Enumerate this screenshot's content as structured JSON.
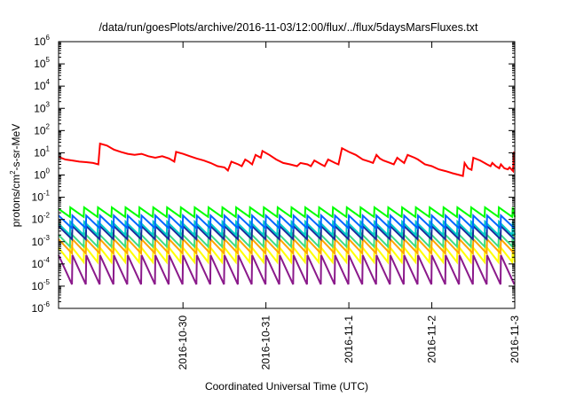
{
  "chart_data": {
    "type": "line",
    "title": "/data/run/goesPlots/archive/2016-11-03/12:00/flux/../flux/5daysMarsFluxes.txt",
    "xlabel": "Coordinated Universal Time (UTC)",
    "ylabel": {
      "prefix": "protons/cm",
      "exponent": "2",
      "suffix": "-s-sr-MeV"
    },
    "yscale": "log",
    "ylim": [
      1e-06,
      1000000.0
    ],
    "xlim": [
      "2016-10-29T00:00",
      "2016-11-03T12:00"
    ],
    "grid": false,
    "legend": "none",
    "y_ticks": [
      {
        "base": "10",
        "exp": "-6",
        "value": 1e-06
      },
      {
        "base": "10",
        "exp": "-5",
        "value": 1e-05
      },
      {
        "base": "10",
        "exp": "-4",
        "value": 0.0001
      },
      {
        "base": "10",
        "exp": "-3",
        "value": 0.001
      },
      {
        "base": "10",
        "exp": "-2",
        "value": 0.01
      },
      {
        "base": "10",
        "exp": "-1",
        "value": 0.1
      },
      {
        "base": "10",
        "exp": "0",
        "value": 1
      },
      {
        "base": "10",
        "exp": "1",
        "value": 10
      },
      {
        "base": "10",
        "exp": "2",
        "value": 100
      },
      {
        "base": "10",
        "exp": "3",
        "value": 1000
      },
      {
        "base": "10",
        "exp": "4",
        "value": 10000
      },
      {
        "base": "10",
        "exp": "5",
        "value": 100000
      },
      {
        "base": "10",
        "exp": "6",
        "value": 1000000
      }
    ],
    "x_ticks": [
      {
        "label": "2016-10-30",
        "value": "2016-10-30T12:00"
      },
      {
        "label": "2016-10-31",
        "value": "2016-10-31T12:00"
      },
      {
        "label": "2016-11-1",
        "value": "2016-11-01T12:00"
      },
      {
        "label": "2016-11-2",
        "value": "2016-11-02T12:00"
      },
      {
        "label": "2016-11-3",
        "value": "2016-11-03T12:00"
      }
    ],
    "series": [
      {
        "color": "#ff0000",
        "points": [
          [
            "2016-10-29T00:00",
            6.5
          ],
          [
            "2016-10-29T02:00",
            5.0
          ],
          [
            "2016-10-29T04:00",
            4.5
          ],
          [
            "2016-10-29T06:00",
            4.0
          ],
          [
            "2016-10-29T08:00",
            3.8
          ],
          [
            "2016-10-29T10:00",
            3.5
          ],
          [
            "2016-10-29T11:30",
            3.0
          ],
          [
            "2016-10-29T12:00",
            26
          ],
          [
            "2016-10-29T14:00",
            21
          ],
          [
            "2016-10-29T16:00",
            14
          ],
          [
            "2016-10-29T18:00",
            11
          ],
          [
            "2016-10-29T20:00",
            9
          ],
          [
            "2016-10-29T22:00",
            8
          ],
          [
            "2016-10-30T00:00",
            9
          ],
          [
            "2016-10-30T02:00",
            7
          ],
          [
            "2016-10-30T04:00",
            6
          ],
          [
            "2016-10-30T06:00",
            7
          ],
          [
            "2016-10-30T08:00",
            5.5
          ],
          [
            "2016-10-30T09:30",
            4.0
          ],
          [
            "2016-10-30T10:00",
            11
          ],
          [
            "2016-10-30T12:00",
            9
          ],
          [
            "2016-10-30T14:00",
            7
          ],
          [
            "2016-10-30T16:00",
            5.5
          ],
          [
            "2016-10-30T18:00",
            4.5
          ],
          [
            "2016-10-30T20:00",
            3.5
          ],
          [
            "2016-10-30T22:00",
            2.5
          ],
          [
            "2016-10-31T00:00",
            2.2
          ],
          [
            "2016-10-31T01:00",
            1.6
          ],
          [
            "2016-10-31T02:00",
            4.0
          ],
          [
            "2016-10-31T04:00",
            3.0
          ],
          [
            "2016-10-31T05:00",
            2.5
          ],
          [
            "2016-10-31T06:00",
            5.0
          ],
          [
            "2016-10-31T07:00",
            4.0
          ],
          [
            "2016-10-31T08:00",
            3.0
          ],
          [
            "2016-10-31T09:00",
            8.0
          ],
          [
            "2016-10-31T10:30",
            6.0
          ],
          [
            "2016-10-31T11:00",
            12
          ],
          [
            "2016-10-31T13:00",
            8.0
          ],
          [
            "2016-10-31T15:00",
            5.0
          ],
          [
            "2016-10-31T17:00",
            3.5
          ],
          [
            "2016-10-31T19:00",
            3.0
          ],
          [
            "2016-10-31T21:00",
            2.5
          ],
          [
            "2016-10-31T22:00",
            3.5
          ],
          [
            "2016-11-01T00:00",
            3.0
          ],
          [
            "2016-11-01T01:00",
            2.5
          ],
          [
            "2016-11-01T02:00",
            4.5
          ],
          [
            "2016-11-01T04:00",
            3.0
          ],
          [
            "2016-11-01T05:00",
            2.5
          ],
          [
            "2016-11-01T06:00",
            5.0
          ],
          [
            "2016-11-01T08:00",
            3.5
          ],
          [
            "2016-11-01T09:00",
            3.0
          ],
          [
            "2016-11-01T10:00",
            16
          ],
          [
            "2016-11-01T12:00",
            11
          ],
          [
            "2016-11-01T14:00",
            8.0
          ],
          [
            "2016-11-01T16:00",
            5.0
          ],
          [
            "2016-11-01T18:00",
            4.0
          ],
          [
            "2016-11-01T19:00",
            3.5
          ],
          [
            "2016-11-01T20:00",
            8.0
          ],
          [
            "2016-11-01T21:00",
            5.5
          ],
          [
            "2016-11-01T22:00",
            4.5
          ],
          [
            "2016-11-02T00:00",
            3.5
          ],
          [
            "2016-11-02T01:00",
            3.0
          ],
          [
            "2016-11-02T02:00",
            6.0
          ],
          [
            "2016-11-02T03:00",
            4.5
          ],
          [
            "2016-11-02T04:00",
            3.5
          ],
          [
            "2016-11-02T05:00",
            8.0
          ],
          [
            "2016-11-02T07:00",
            6.0
          ],
          [
            "2016-11-02T08:00",
            5.0
          ],
          [
            "2016-11-02T10:00",
            3.0
          ],
          [
            "2016-11-02T12:00",
            2.5
          ],
          [
            "2016-11-02T14:00",
            1.8
          ],
          [
            "2016-11-02T16:00",
            1.5
          ],
          [
            "2016-11-02T18:00",
            1.2
          ],
          [
            "2016-11-02T20:00",
            1.0
          ],
          [
            "2016-11-02T21:00",
            0.9
          ],
          [
            "2016-11-02T21:30",
            3.5
          ],
          [
            "2016-11-02T22:30",
            2.0
          ],
          [
            "2016-11-02T23:30",
            1.7
          ],
          [
            "2016-11-03T00:00",
            6.0
          ],
          [
            "2016-11-03T02:00",
            4.5
          ],
          [
            "2016-11-03T04:00",
            3.0
          ],
          [
            "2016-11-03T05:00",
            2.5
          ],
          [
            "2016-11-03T05:30",
            3.5
          ],
          [
            "2016-11-03T06:30",
            2.5
          ],
          [
            "2016-11-03T07:30",
            2.0
          ],
          [
            "2016-11-03T08:00",
            3.0
          ],
          [
            "2016-11-03T09:00",
            2.0
          ],
          [
            "2016-11-03T10:00",
            1.8
          ],
          [
            "2016-11-03T10:30",
            2.2
          ],
          [
            "2016-11-03T11:30",
            1.5
          ],
          [
            "2016-11-03T11:45",
            11
          ],
          [
            "2016-11-03T12:00",
            9.0
          ]
        ]
      },
      {
        "color": "#00ff00",
        "pattern": {
          "period_hours": 4,
          "high": 0.035,
          "low": 0.013
        }
      },
      {
        "color": "#0066ff",
        "pattern": {
          "period_hours": 4,
          "high": 0.015,
          "low": 0.004
        }
      },
      {
        "color": "#00c8c8",
        "pattern": {
          "period_hours": 4,
          "high": 0.008,
          "low": 0.002
        }
      },
      {
        "color": "#1a2b9c",
        "pattern": {
          "period_hours": 4,
          "high": 0.005,
          "low": 0.0013
        }
      },
      {
        "color": "#3ddc84",
        "pattern": {
          "period_hours": 4,
          "high": 0.0025,
          "low": 0.0006
        }
      },
      {
        "color": "#ffa500",
        "pattern": {
          "period_hours": 4,
          "high": 0.0013,
          "low": 0.0003
        }
      },
      {
        "color": "#ffff00",
        "pattern": {
          "period_hours": 4,
          "high": 0.0007,
          "low": 0.00012
        }
      },
      {
        "color": "#8b1a8b",
        "pattern": {
          "period_hours": 4,
          "high": 0.00025,
          "low": 1.2e-05
        }
      }
    ]
  }
}
